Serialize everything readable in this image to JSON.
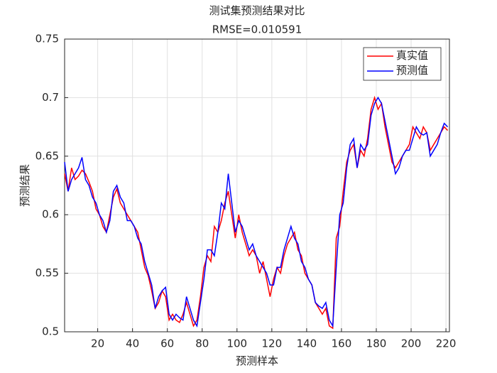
{
  "chart_data": {
    "type": "line",
    "title": "测试集预测结果对比",
    "subtitle": "RMSE=0.010591",
    "x_label": "预测样本",
    "y_label": "预测结果",
    "x": [
      1,
      3,
      5,
      7,
      9,
      11,
      13,
      15,
      17,
      19,
      21,
      23,
      25,
      27,
      29,
      31,
      33,
      35,
      37,
      39,
      41,
      43,
      45,
      47,
      49,
      51,
      53,
      55,
      57,
      59,
      61,
      63,
      65,
      67,
      69,
      71,
      73,
      75,
      77,
      79,
      81,
      83,
      85,
      87,
      89,
      91,
      93,
      95,
      97,
      99,
      101,
      103,
      105,
      107,
      109,
      111,
      113,
      115,
      117,
      119,
      121,
      123,
      125,
      127,
      129,
      131,
      133,
      135,
      137,
      139,
      141,
      143,
      145,
      147,
      149,
      151,
      153,
      155,
      157,
      159,
      161,
      163,
      165,
      167,
      169,
      171,
      173,
      175,
      177,
      179,
      181,
      183,
      185,
      187,
      189,
      191,
      193,
      195,
      197,
      199,
      201,
      203,
      205,
      207,
      209,
      211,
      213,
      215,
      217,
      219,
      221
    ],
    "series": [
      {
        "name": "真实值",
        "color": "#ff0000",
        "values": [
          0.635,
          0.62,
          0.64,
          0.63,
          0.633,
          0.638,
          0.635,
          0.628,
          0.62,
          0.605,
          0.6,
          0.59,
          0.585,
          0.6,
          0.615,
          0.622,
          0.61,
          0.605,
          0.6,
          0.595,
          0.59,
          0.585,
          0.57,
          0.555,
          0.548,
          0.535,
          0.52,
          0.525,
          0.535,
          0.53,
          0.51,
          0.515,
          0.51,
          0.508,
          0.515,
          0.525,
          0.515,
          0.505,
          0.51,
          0.53,
          0.555,
          0.565,
          0.56,
          0.59,
          0.585,
          0.595,
          0.61,
          0.62,
          0.6,
          0.58,
          0.6,
          0.585,
          0.575,
          0.565,
          0.57,
          0.565,
          0.55,
          0.56,
          0.545,
          0.53,
          0.545,
          0.555,
          0.55,
          0.565,
          0.575,
          0.58,
          0.585,
          0.57,
          0.565,
          0.55,
          0.545,
          0.54,
          0.525,
          0.52,
          0.515,
          0.52,
          0.505,
          0.503,
          0.58,
          0.59,
          0.62,
          0.645,
          0.655,
          0.66,
          0.64,
          0.655,
          0.65,
          0.665,
          0.69,
          0.7,
          0.69,
          0.695,
          0.675,
          0.66,
          0.645,
          0.64,
          0.645,
          0.65,
          0.655,
          0.66,
          0.675,
          0.67,
          0.665,
          0.675,
          0.67,
          0.655,
          0.66,
          0.665,
          0.67,
          0.675,
          0.672
        ]
      },
      {
        "name": "预测值",
        "color": "#0000ff",
        "values": [
          0.645,
          0.62,
          0.63,
          0.635,
          0.64,
          0.649,
          0.63,
          0.625,
          0.615,
          0.61,
          0.6,
          0.595,
          0.585,
          0.595,
          0.62,
          0.625,
          0.615,
          0.61,
          0.595,
          0.595,
          0.59,
          0.58,
          0.575,
          0.56,
          0.55,
          0.54,
          0.52,
          0.53,
          0.535,
          0.538,
          0.515,
          0.51,
          0.515,
          0.512,
          0.51,
          0.53,
          0.52,
          0.51,
          0.505,
          0.525,
          0.545,
          0.57,
          0.57,
          0.565,
          0.585,
          0.61,
          0.605,
          0.635,
          0.61,
          0.585,
          0.595,
          0.59,
          0.58,
          0.57,
          0.575,
          0.565,
          0.56,
          0.555,
          0.55,
          0.54,
          0.54,
          0.555,
          0.555,
          0.57,
          0.58,
          0.59,
          0.58,
          0.575,
          0.56,
          0.555,
          0.545,
          0.54,
          0.525,
          0.522,
          0.52,
          0.525,
          0.51,
          0.505,
          0.555,
          0.6,
          0.61,
          0.64,
          0.66,
          0.665,
          0.64,
          0.66,
          0.655,
          0.66,
          0.685,
          0.695,
          0.7,
          0.695,
          0.68,
          0.665,
          0.65,
          0.635,
          0.64,
          0.65,
          0.655,
          0.655,
          0.665,
          0.675,
          0.67,
          0.668,
          0.67,
          0.65,
          0.655,
          0.66,
          0.67,
          0.678,
          0.675
        ]
      }
    ],
    "xlim": [
      1,
      222
    ],
    "xticks": [
      20,
      40,
      60,
      80,
      100,
      120,
      140,
      160,
      180,
      200,
      220
    ],
    "ylim": [
      0.5,
      0.75
    ],
    "yticks": [
      0.5,
      0.55,
      0.6,
      0.65,
      0.7,
      0.75
    ],
    "grid": true,
    "legend": "upper right"
  }
}
